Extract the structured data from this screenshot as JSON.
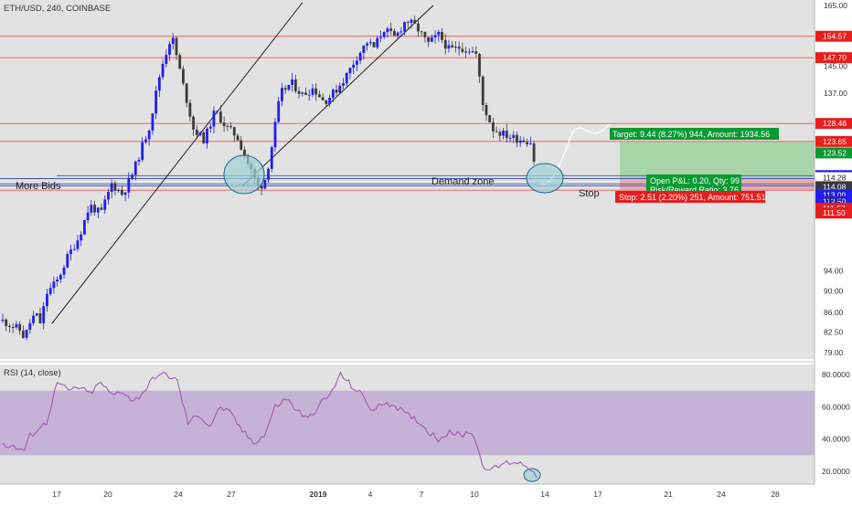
{
  "header": {
    "symbol_line": "ETH/USD, 240, COINBASE"
  },
  "rsi_header": {
    "label": "RSI (14, close)"
  },
  "colors": {
    "background": "#e2e2e2",
    "up_candle": "#1e1ef0",
    "down_candle": "#3a3a3a",
    "hline_red": "#ef5350",
    "hline_blue": "#3f51b5",
    "zone_fill": "#a8d5d5",
    "target_fill": "#a3d4a5",
    "stop_fill": "#e9a7a7",
    "rsi_line": "#9c4fb0",
    "rsi_band": "#c6b2d6",
    "label_red": "#e61e1e",
    "label_green": "#0a9a32",
    "label_blue": "#1e1ef0",
    "label_dark": "#363a45"
  },
  "annotations": {
    "more_bids": "More Bids",
    "demand_zone": "Demand zone",
    "stop": "Stop",
    "target_box": "Target: 9.44 (8.27%) 944, Amount: 1934.56",
    "pnl_line1": "Open P&L: 0.20, Qty: 99",
    "pnl_line2": "Risk/Reward Ratio: 3.76",
    "stop_box": "Stop: 2.51 (2.20%) 251, Amount: 751.51"
  },
  "chart_data": {
    "type": "candlestick",
    "title": "ETH/USD, 240, COINBASE",
    "x_tick_labels": [
      "17",
      "20",
      "24",
      "27",
      "2019",
      "4",
      "7",
      "10",
      "14",
      "17",
      "21",
      "24",
      "28"
    ],
    "price_axis": {
      "scale": "log",
      "ylim": [
        77,
        166
      ],
      "tick_labels": [
        "165.00",
        "145.00",
        "137.00",
        "94.00",
        "90.00",
        "86.00",
        "82.50",
        "79.00"
      ]
    },
    "price_labels": [
      {
        "value": 154.57,
        "text": "154.57",
        "color": "red"
      },
      {
        "value": 147.7,
        "text": "147.70",
        "color": "red"
      },
      {
        "value": 128.46,
        "text": "128.46",
        "color": "red"
      },
      {
        "value": 123.65,
        "text": "123.65",
        "color": "red"
      },
      {
        "value": 123.52,
        "text": "123.52",
        "color": "green"
      },
      {
        "value": 115.0,
        "text": "115.00",
        "color": "blue"
      },
      {
        "value": 114.28,
        "text": "114.28",
        "color": "white"
      },
      {
        "value": 114.08,
        "text": "114.08",
        "color": "dark"
      },
      {
        "value": 113.0,
        "text": "113.00",
        "color": "blue"
      },
      {
        "value": 112.5,
        "text": "112.50",
        "color": "blue"
      },
      {
        "value": 111.57,
        "text": "111.57",
        "color": "red"
      },
      {
        "value": 111.5,
        "text": "111.50",
        "color": "red"
      }
    ],
    "countdown_label": "09:12",
    "horizontal_levels": {
      "red": [
        154.57,
        147.7,
        128.46,
        123.65,
        111.5
      ],
      "blue": [
        115.0,
        114.28,
        113.0,
        112.5
      ]
    },
    "position": {
      "entry": 114.08,
      "target": 123.52,
      "stop": 111.57
    },
    "price_path": [
      [
        0,
        84.5
      ],
      [
        3,
        83.0
      ],
      [
        4,
        81.5
      ],
      [
        5,
        84.2
      ],
      [
        6,
        85.8
      ],
      [
        7,
        84.0
      ],
      [
        8,
        89.5
      ],
      [
        10,
        92.0
      ],
      [
        12,
        97.0
      ],
      [
        14,
        101.0
      ],
      [
        16,
        108.0
      ],
      [
        18,
        106.0
      ],
      [
        20,
        113.0
      ],
      [
        22,
        110.5
      ],
      [
        24,
        116.0
      ],
      [
        27,
        128.0
      ],
      [
        29,
        144.0
      ],
      [
        31,
        155.0
      ],
      [
        33,
        140.0
      ],
      [
        35,
        127.0
      ],
      [
        37,
        124.0
      ],
      [
        39,
        132.0
      ],
      [
        41,
        127.5
      ],
      [
        43,
        125.0
      ],
      [
        45,
        118.0
      ],
      [
        47,
        112.0
      ],
      [
        48,
        113.5
      ],
      [
        49,
        119.0
      ],
      [
        51,
        137.0
      ],
      [
        53,
        140.0
      ],
      [
        55,
        136.5
      ],
      [
        57,
        138.5
      ],
      [
        59,
        134.5
      ],
      [
        61,
        137.5
      ],
      [
        63,
        142.0
      ],
      [
        65,
        148.0
      ],
      [
        67,
        153.0
      ],
      [
        68,
        150.5
      ],
      [
        70,
        157.0
      ],
      [
        72,
        154.0
      ],
      [
        74,
        160.0
      ],
      [
        76,
        157.5
      ],
      [
        78,
        152.0
      ],
      [
        80,
        155.0
      ],
      [
        82,
        150.0
      ],
      [
        84,
        151.0
      ],
      [
        86,
        150.0
      ],
      [
        87,
        148.5
      ],
      [
        88,
        134.0
      ],
      [
        90,
        127.0
      ],
      [
        92,
        125.5
      ],
      [
        94,
        124.5
      ],
      [
        96,
        124.0
      ],
      [
        97,
        123.5
      ],
      [
        98,
        114.1
      ]
    ],
    "trendlines": [
      {
        "from": [
          9,
          84.0
        ],
        "to": [
          55,
          166.0
        ]
      },
      {
        "from": [
          44,
          112.5
        ],
        "to": [
          79,
          165.0
        ]
      }
    ],
    "rsi": {
      "title": "RSI (14, close)",
      "ylim": [
        14,
        84
      ],
      "tick_labels": [
        "80.0000",
        "60.0000",
        "40.0000",
        "20.0000"
      ],
      "band": [
        30,
        70
      ],
      "values": [
        [
          0,
          37
        ],
        [
          2,
          35
        ],
        [
          4,
          33
        ],
        [
          5,
          42
        ],
        [
          6,
          45
        ],
        [
          8,
          50
        ],
        [
          10,
          75
        ],
        [
          12,
          70
        ],
        [
          14,
          72
        ],
        [
          16,
          68
        ],
        [
          18,
          75
        ],
        [
          20,
          67
        ],
        [
          22,
          70
        ],
        [
          24,
          63
        ],
        [
          26,
          70
        ],
        [
          28,
          79
        ],
        [
          30,
          80
        ],
        [
          32,
          76
        ],
        [
          34,
          50
        ],
        [
          36,
          55
        ],
        [
          38,
          48
        ],
        [
          40,
          60
        ],
        [
          42,
          55
        ],
        [
          44,
          45
        ],
        [
          46,
          38
        ],
        [
          48,
          42
        ],
        [
          50,
          60
        ],
        [
          52,
          65
        ],
        [
          54,
          58
        ],
        [
          56,
          52
        ],
        [
          58,
          61
        ],
        [
          60,
          67
        ],
        [
          62,
          80
        ],
        [
          64,
          73
        ],
        [
          66,
          67
        ],
        [
          68,
          57
        ],
        [
          70,
          63
        ],
        [
          72,
          61
        ],
        [
          74,
          55
        ],
        [
          76,
          52
        ],
        [
          78,
          45
        ],
        [
          80,
          40
        ],
        [
          82,
          45
        ],
        [
          84,
          42
        ],
        [
          86,
          45
        ],
        [
          87,
          37
        ],
        [
          88,
          24
        ],
        [
          90,
          21
        ],
        [
          92,
          25
        ],
        [
          94,
          26
        ],
        [
          96,
          24
        ],
        [
          97,
          22
        ],
        [
          98,
          16
        ]
      ]
    }
  }
}
